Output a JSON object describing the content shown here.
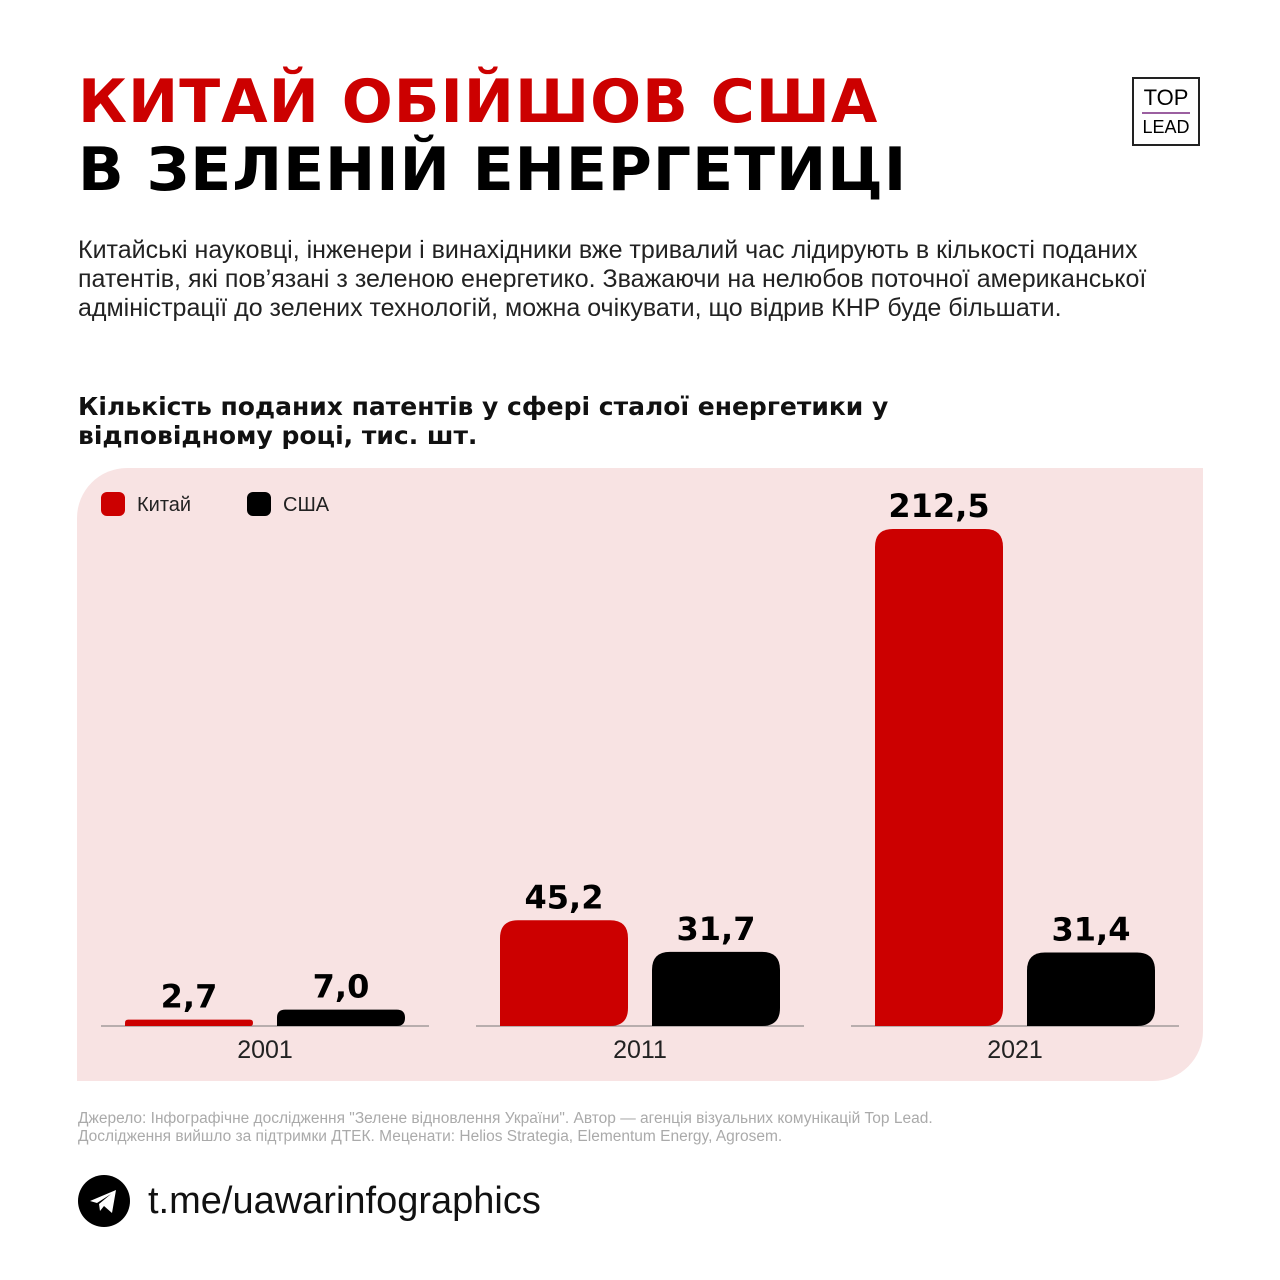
{
  "title_line1": "КИТАЙ ОБІЙШОВ США",
  "title_line2": "В ЗЕЛЕНІЙ ЕНЕРГЕТИЦІ",
  "logo": {
    "top": "TOP",
    "bottom": "LEAD"
  },
  "intro": "Китайські науковці, інженери і винахідники вже тривалий час лідирують в кількості поданих патентів, які пов’язані з зеленою енергетико. Зважаючи на нелюбов поточної американської адміністрації до зелених технологій, можна очікувати, що відрив КНР буде більшати.",
  "chart_data": {
    "type": "bar",
    "title": "Кількість поданих патентів у сфері сталої енергетики у відповідному році, тис. шт.",
    "categories": [
      "2001",
      "2011",
      "2021"
    ],
    "series": [
      {
        "name": "Китай",
        "color": "#cc0000",
        "values": [
          2.7,
          45.2,
          212.5
        ],
        "labels": [
          "2,7",
          "45,2",
          "212,5"
        ]
      },
      {
        "name": "США",
        "color": "#000000",
        "values": [
          7.0,
          31.7,
          31.4
        ],
        "labels": [
          "7,0",
          "31,7",
          "31,4"
        ]
      }
    ],
    "legend": "top-left",
    "grid": false,
    "background": "#f8e3e3"
  },
  "source": [
    "Джерело: Інфографічне дослідження \"Зелене відновлення України\". Автор — агенція візуальних комунікацій Top Lead.",
    "Дослідження вийшло за підтримки ДТЕК. Меценати: Helios Strategia, Elementum Energy, Agrosem."
  ],
  "footer": {
    "icon": "telegram-icon",
    "link": "t.me/uawarinfographics"
  }
}
